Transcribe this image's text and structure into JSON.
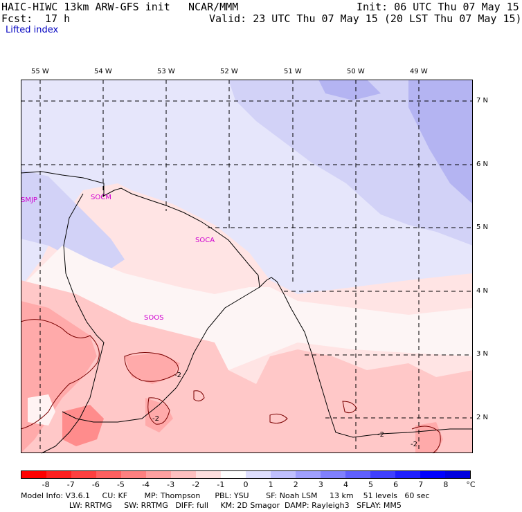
{
  "header": {
    "model_title": "HAIC-HIWC 13km ARW-GFS init",
    "org": "NCAR/MMM",
    "init": "Init: 06 UTC Thu 07 May 15",
    "fcst_label": "Fcst:",
    "fcst_value": "17 h",
    "valid": "Valid: 23 UTC Thu 07 May 15 (20 LST Thu 07 May 15)",
    "field_name": "Lifted index"
  },
  "map": {
    "longitude_labels": [
      "55 W",
      "54 W",
      "53 W",
      "52 W",
      "51 W",
      "50 W",
      "49 W"
    ],
    "latitude_labels": [
      "7 N",
      "6 N",
      "5 N",
      "4 N",
      "3 N",
      "2 N"
    ],
    "stations": [
      "SMJP",
      "SOCM",
      "SOCA",
      "SOOS"
    ],
    "contour_labels": [
      "-2",
      "-2",
      "-2",
      "-2"
    ]
  },
  "colorbar": {
    "labels": [
      "-8",
      "-7",
      "-6",
      "-5",
      "-4",
      "-3",
      "-2",
      "-1",
      "0",
      "1",
      "2",
      "3",
      "4",
      "5",
      "6",
      "7",
      "8"
    ],
    "unit": "°C",
    "colors": [
      "#ff0000",
      "#ff2020",
      "#ff4040",
      "#ff6060",
      "#ff8080",
      "#ffa0a0",
      "#ffc0c0",
      "#ffe0e0",
      "#ffffff",
      "#e0e0ff",
      "#c0c0ff",
      "#a0a0ff",
      "#8080ff",
      "#6060ff",
      "#4040ff",
      "#2020ff",
      "#0000ff",
      "#0000e0"
    ]
  },
  "model_info": {
    "line1": "Model Info: V3.6.1     CU: KF       MP: Thompson      PBL: YSU       SF: Noah LSM     13 km    51 levels   60 sec",
    "line2": "                    LW: RRTMG     SW: RRTMG   DIFF: full     KM: 2D Smagor  DAMP: Rayleigh3   SFLAY: MM5"
  }
}
